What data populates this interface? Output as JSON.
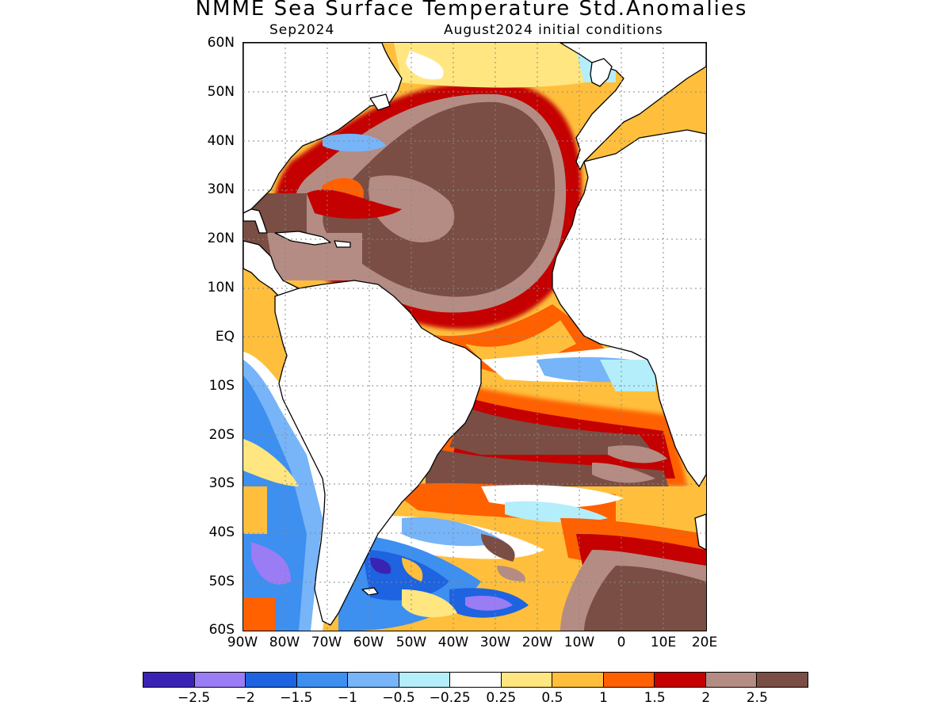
{
  "title": "NMME Sea Surface Temperature Std.Anomalies",
  "subtitle_left": "Sep2024",
  "subtitle_right": "August2024 initial conditions",
  "map": {
    "lat_labels": [
      "60N",
      "50N",
      "40N",
      "30N",
      "20N",
      "10N",
      "EQ",
      "10S",
      "20S",
      "30S",
      "40S",
      "50S",
      "60S"
    ],
    "lon_labels": [
      "90W",
      "80W",
      "70W",
      "60W",
      "50W",
      "40W",
      "30W",
      "20W",
      "10W",
      "0",
      "10E",
      "20E"
    ],
    "land_color": "#ffffff",
    "coast_color": "#000000"
  },
  "legend": {
    "colors": [
      "#3a23b4",
      "#9a7cf5",
      "#1e63e0",
      "#3d8ff0",
      "#77b4f8",
      "#b4eefa",
      "#ffffff",
      "#ffe680",
      "#ffbf3c",
      "#ff6000",
      "#c40000",
      "#b48c84",
      "#7a4e44"
    ],
    "labels": [
      "−2.5",
      "−2",
      "−1.5",
      "−1",
      "−0.5",
      "−0.25",
      "0.25",
      "0.5",
      "1",
      "1.5",
      "2",
      "2.5"
    ]
  }
}
